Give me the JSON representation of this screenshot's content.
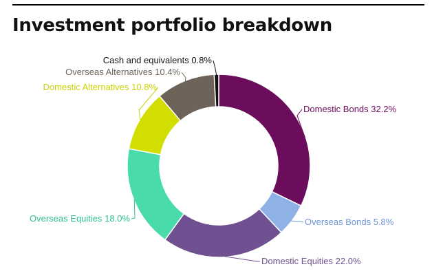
{
  "chart_data": {
    "type": "pie",
    "variant": "donut",
    "title": "Investment portfolio breakdown",
    "legend": "none",
    "unit": "%",
    "slices": [
      {
        "label": "Domestic Bonds",
        "value": 32.2,
        "display": "Domestic Bonds 32.2%",
        "color": "#6b0d5c",
        "label_color": "#6b0d5c"
      },
      {
        "label": "Overseas Bonds",
        "value": 5.8,
        "display": "Overseas Bonds 5.8%",
        "color": "#8eb1e6",
        "label_color": "#6f97d8"
      },
      {
        "label": "Domestic Equities",
        "value": 22.0,
        "display": "Domestic Equities 22.0%",
        "color": "#6f5191",
        "label_color": "#6f5191"
      },
      {
        "label": "Overseas Equities",
        "value": 18.0,
        "display": "Overseas Equities 18.0%",
        "color": "#4adbad",
        "label_color": "#2fbf92"
      },
      {
        "label": "Domestic Alternatives",
        "value": 10.8,
        "display": "Domestic Alternatives 10.8%",
        "color": "#d2de00",
        "label_color": "#c9d200"
      },
      {
        "label": "Overseas Alternatives",
        "value": 10.4,
        "display": "Overseas Alternatives 10.4%",
        "color": "#6e6358",
        "label_color": "#6e6358"
      },
      {
        "label": "Cash and equivalents",
        "value": 0.8,
        "display": "Cash and equivalents 0.8%",
        "color": "#111111",
        "label_color": "#111111"
      }
    ]
  }
}
